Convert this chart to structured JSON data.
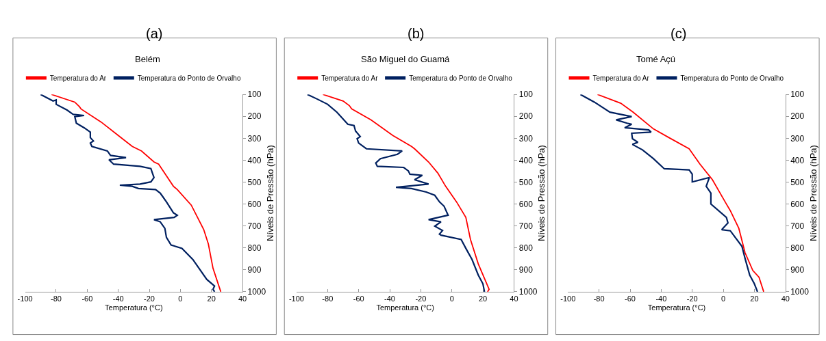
{
  "chart_data": [
    {
      "type": "line",
      "title": "Belém",
      "annotations": [
        "(a)"
      ],
      "xlabel": "Temperatura (°C)",
      "ylabel": "Níveis de Pressão (hPa)",
      "xlim": [
        -100,
        40
      ],
      "xticks": [
        -100,
        -80,
        -60,
        -40,
        -20,
        0,
        20,
        40
      ],
      "ylim": [
        1000,
        100
      ],
      "yticks": [
        100,
        200,
        300,
        400,
        500,
        600,
        700,
        800,
        900,
        1000
      ],
      "legend": "top",
      "line_style": "solid",
      "series": [
        {
          "name": "Temperatura do Ar",
          "color": "#ff0000",
          "x": [
            -83,
            -68,
            -65,
            -64,
            -51,
            -40,
            -31,
            -25,
            -17,
            -14,
            -4.5,
            -2,
            7,
            15,
            18,
            21,
            25,
            26
          ],
          "values": [
            100,
            135,
            156,
            166,
            226,
            287,
            337,
            358,
            408,
            418,
            519,
            534,
            605,
            716,
            782,
            893,
            979,
            1000
          ]
        },
        {
          "name": "Temperatura do Ponto de Orvalho",
          "color": "#002060",
          "x": [
            -90,
            -82,
            -80,
            -80,
            -73,
            -70,
            -69,
            -62,
            -68,
            -67,
            -62,
            -58,
            -58,
            -56,
            -58,
            -57,
            -47,
            -45,
            -35,
            -46,
            -43,
            -26,
            -19,
            -18,
            -17,
            -19,
            -26,
            -39,
            -31,
            -27,
            -16,
            -13,
            -12,
            -9,
            -4.5,
            -2,
            -4,
            -17,
            -13,
            -10,
            -9,
            -6,
            1,
            8,
            17,
            22,
            21,
            22
          ],
          "values": [
            100,
            130,
            125,
            145,
            171,
            186,
            191,
            196,
            201,
            231,
            252,
            272,
            297,
            312,
            322,
            337,
            358,
            378,
            388,
            398,
            418,
            428,
            438,
            459,
            479,
            499,
            509,
            514,
            519,
            529,
            534,
            550,
            560,
            590,
            640,
            651,
            661,
            671,
            681,
            711,
            752,
            787,
            802,
            853,
            944,
            974,
            989,
            1000
          ]
        }
      ]
    },
    {
      "type": "line",
      "title": "São Miguel do Guamá",
      "annotations": [
        "(b)"
      ],
      "xlabel": "Temperatura (°C)",
      "ylabel": "Níveis de Pressão (hPa)",
      "xlim": [
        -100,
        40
      ],
      "xticks": [
        -100,
        -80,
        -60,
        -40,
        -20,
        0,
        20,
        40
      ],
      "ylim": [
        1000,
        100
      ],
      "yticks": [
        100,
        200,
        300,
        400,
        500,
        600,
        700,
        800,
        900,
        1000
      ],
      "legend": "top",
      "line_style": "solid",
      "series": [
        {
          "name": "Temperatura do Ar",
          "color": "#ff0000",
          "x": [
            -83,
            -70,
            -66,
            -64.5,
            -52,
            -38,
            -26,
            -24,
            -15,
            -9,
            -4,
            3,
            9,
            12,
            17,
            24,
            23
          ],
          "values": [
            100,
            130,
            151,
            166,
            216,
            287,
            337,
            348,
            408,
            459,
            519,
            590,
            661,
            762,
            873,
            989,
            1000
          ]
        },
        {
          "name": "Temperatura do Ponto de Orvalho",
          "color": "#002060",
          "x": [
            -93,
            -87,
            -80,
            -74,
            -67,
            -63,
            -62,
            -59,
            -61,
            -60,
            -55,
            -32,
            -35,
            -46,
            -49,
            -48,
            -31,
            -28,
            -27,
            -19,
            -24,
            -15,
            -36,
            -26,
            -16.5,
            -11,
            -8,
            -5,
            -2.4,
            -15,
            -7,
            -11,
            -6,
            -8,
            -7,
            6,
            9,
            13,
            17,
            20,
            21
          ],
          "values": [
            100,
            120,
            145,
            181,
            236,
            242,
            267,
            292,
            302,
            322,
            348,
            358,
            373,
            393,
            413,
            428,
            433,
            449,
            464,
            469,
            489,
            509,
            524,
            529,
            545,
            560,
            590,
            610,
            651,
            671,
            681,
            701,
            721,
            737,
            742,
            762,
            802,
            853,
            924,
            964,
            1000
          ]
        }
      ]
    },
    {
      "type": "line",
      "title": "Tomé Açú",
      "annotations": [
        "(c)"
      ],
      "xlabel": "Temperatura (°C)",
      "ylabel": "Níveis de Pressão (hPa)",
      "xlim": [
        -100,
        40
      ],
      "xticks": [
        -100,
        -80,
        -60,
        -40,
        -20,
        0,
        20,
        40
      ],
      "ylim": [
        1000,
        100
      ],
      "yticks": [
        100,
        200,
        300,
        400,
        500,
        600,
        700,
        800,
        900,
        1000
      ],
      "legend": "top",
      "line_style": "solid",
      "series": [
        {
          "name": "Temperatura do Ar",
          "color": "#ff0000",
          "x": [
            -81,
            -66,
            -58,
            -45,
            -35,
            -22,
            -15,
            -7,
            2,
            4.5,
            10,
            14,
            19,
            23,
            26
          ],
          "values": [
            100,
            140,
            181,
            257,
            297,
            348,
            418,
            489,
            600,
            630,
            711,
            822,
            903,
            934,
            1000
          ]
        },
        {
          "name": "Temperatura do Ponto de Orvalho",
          "color": "#002060",
          "x": [
            -92,
            -83,
            -73,
            -59,
            -69,
            -62,
            -59,
            -63.5,
            -48,
            -46.5,
            -59,
            -58.5,
            -55,
            -58.5,
            -52,
            -45,
            -38,
            -22,
            -20,
            -20,
            -9,
            -11,
            -8,
            -8,
            2,
            3,
            -1,
            4.5,
            12,
            14,
            17,
            20,
            22
          ],
          "values": [
            100,
            135,
            181,
            201,
            216,
            231,
            236,
            252,
            262,
            272,
            277,
            302,
            318,
            328,
            353,
            393,
            439,
            444,
            464,
            499,
            479,
            519,
            550,
            600,
            661,
            686,
            717,
            722,
            793,
            848,
            924,
            964,
            1000
          ]
        }
      ]
    }
  ]
}
